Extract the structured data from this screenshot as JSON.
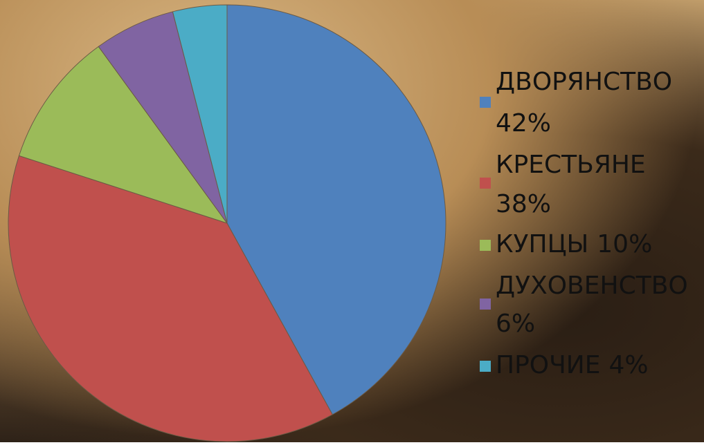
{
  "chart_data": {
    "type": "pie",
    "categories": [
      "ДВОРЯНСТВО",
      "КРЕСТЬЯНЕ",
      "КУПЦЫ",
      "ДУХОВЕНСТВО",
      "ПРОЧИЕ"
    ],
    "values": [
      42,
      38,
      10,
      6,
      4
    ],
    "value_labels": [
      "42%",
      "38%",
      "10%",
      "6%",
      "4%"
    ],
    "colors": [
      "#4f81bd",
      "#c0504d",
      "#9bbb59",
      "#8064a2",
      "#4bacc6"
    ],
    "legend": "right"
  }
}
